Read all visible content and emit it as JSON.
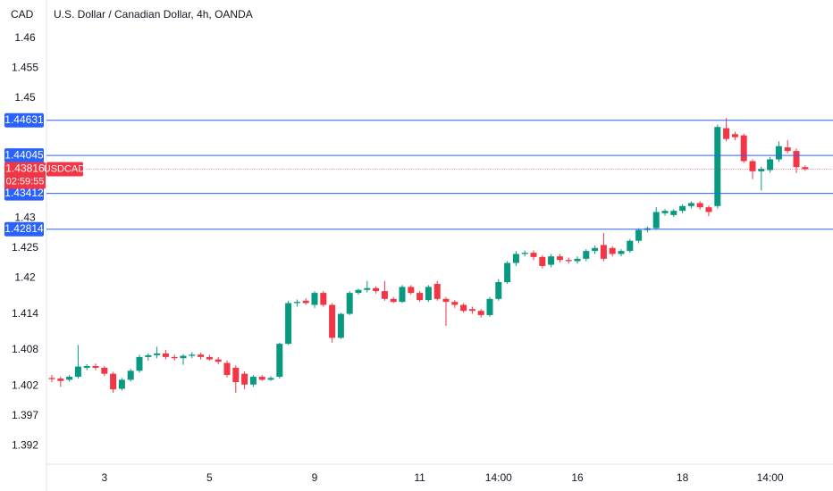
{
  "chart_data": {
    "type": "candlestick",
    "title": "U.S. Dollar / Canadian Dollar, 4h, OANDA",
    "currency": "CAD",
    "symbol": "USDCAD",
    "countdown": "02:59:55",
    "up_color": "#089981",
    "down_color": "#f23645",
    "line_color": "#2962ff",
    "ylim": [
      1.3889,
      1.4664
    ],
    "yticks": [
      1.46,
      1.455,
      1.45,
      1.43,
      1.425,
      1.42,
      1.414,
      1.408,
      1.402,
      1.397,
      1.392
    ],
    "price_lines": [
      1.44631,
      1.44045,
      1.43412,
      1.42814
    ],
    "last_price": 1.43816,
    "categories": [
      null,
      null,
      null,
      null,
      null,
      null,
      "3",
      null,
      null,
      null,
      null,
      null,
      null,
      null,
      null,
      null,
      null,
      null,
      "5",
      null,
      null,
      null,
      null,
      null,
      null,
      null,
      null,
      null,
      null,
      null,
      "9",
      null,
      null,
      null,
      null,
      null,
      null,
      null,
      null,
      null,
      null,
      null,
      "11",
      null,
      null,
      null,
      null,
      null,
      null,
      null,
      null,
      "14:00",
      null,
      null,
      null,
      null,
      null,
      null,
      null,
      null,
      "16",
      null,
      null,
      null,
      null,
      null,
      null,
      null,
      null,
      null,
      null,
      null,
      "18",
      null,
      null,
      null,
      null,
      null,
      null,
      null,
      null,
      null,
      "14:00",
      null,
      null,
      null,
      null
    ],
    "open": [
      1.4033,
      1.4032,
      1.403,
      1.4035,
      1.405,
      1.4053,
      1.405,
      1.404,
      1.4015,
      1.403,
      1.4045,
      1.4068,
      1.4071,
      1.4074,
      1.4068,
      1.4066,
      1.407,
      1.4072,
      1.4068,
      1.4064,
      1.4058,
      1.405,
      1.404,
      1.4022,
      1.4035,
      1.403,
      1.4035,
      1.409,
      1.4158,
      1.4162,
      1.4155,
      1.4175,
      1.4155,
      1.41,
      1.414,
      1.4175,
      1.418,
      1.4183,
      1.4178,
      1.4165,
      1.416,
      1.4185,
      1.4175,
      1.4163,
      1.419,
      1.4165,
      1.416,
      1.4155,
      1.4148,
      1.4145,
      1.4138,
      1.4165,
      1.4193,
      1.4225,
      1.424,
      1.4242,
      1.4235,
      1.4222,
      1.4236,
      1.423,
      1.4228,
      1.4232,
      1.4245,
      1.4255,
      1.425,
      1.424,
      1.4245,
      1.4262,
      1.428,
      1.4283,
      1.4308,
      1.4305,
      1.4312,
      1.432,
      1.4325,
      1.4318,
      1.432,
      1.445,
      1.444,
      1.4438,
      1.4395,
      1.4378,
      1.438,
      1.4398,
      1.4418,
      1.4412,
      1.4385
    ],
    "high": [
      1.4038,
      1.4035,
      1.4038,
      1.4088,
      1.4056,
      1.4057,
      1.4053,
      1.4043,
      1.4033,
      1.4048,
      1.4072,
      1.4074,
      1.4085,
      1.408,
      1.4072,
      1.4073,
      1.4076,
      1.4075,
      1.4072,
      1.4068,
      1.4062,
      1.4054,
      1.4044,
      1.4038,
      1.4038,
      1.4036,
      1.4092,
      1.4162,
      1.4164,
      1.4166,
      1.4178,
      1.4178,
      1.4158,
      1.4142,
      1.4178,
      1.4182,
      1.4195,
      1.4186,
      1.4195,
      1.4168,
      1.4188,
      1.4188,
      1.4178,
      1.4188,
      1.4195,
      1.4168,
      1.4163,
      1.4158,
      1.4152,
      1.4148,
      1.4168,
      1.4198,
      1.4228,
      1.4245,
      1.4246,
      1.4246,
      1.4238,
      1.424,
      1.424,
      1.4234,
      1.4236,
      1.4248,
      1.4254,
      1.4275,
      1.4253,
      1.4248,
      1.4265,
      1.4283,
      1.4286,
      1.4318,
      1.4315,
      1.4315,
      1.4323,
      1.4328,
      1.4328,
      1.4321,
      1.4456,
      1.4467,
      1.4444,
      1.4441,
      1.4398,
      1.4386,
      1.4402,
      1.4428,
      1.443,
      1.4416,
      1.4388
    ],
    "low": [
      1.4026,
      1.4018,
      1.4027,
      1.4032,
      1.4046,
      1.4046,
      1.4036,
      1.4008,
      1.4012,
      1.4027,
      1.4042,
      1.4062,
      1.4066,
      1.4064,
      1.4062,
      1.4055,
      1.4066,
      1.4064,
      1.4062,
      1.4056,
      1.4034,
      1.4008,
      1.4014,
      1.4018,
      1.4028,
      1.4028,
      1.4032,
      1.4088,
      1.4152,
      1.4155,
      1.415,
      1.4152,
      1.4092,
      1.4098,
      1.4138,
      1.4172,
      1.4176,
      1.4174,
      1.4162,
      1.4158,
      1.4158,
      1.4172,
      1.416,
      1.416,
      1.4162,
      1.412,
      1.415,
      1.4142,
      1.414,
      1.4134,
      1.4135,
      1.4162,
      1.419,
      1.422,
      1.4236,
      1.423,
      1.4216,
      1.4218,
      1.4226,
      1.4224,
      1.4224,
      1.4228,
      1.424,
      1.4228,
      1.4236,
      1.4236,
      1.4242,
      1.4258,
      1.4276,
      1.428,
      1.4304,
      1.4302,
      1.4308,
      1.4316,
      1.4314,
      1.4303,
      1.4316,
      1.4428,
      1.443,
      1.4392,
      1.4365,
      1.4346,
      1.4376,
      1.4394,
      1.4408,
      1.4375,
      1.4379
    ],
    "close": [
      1.4031,
      1.4028,
      1.4035,
      1.4052,
      1.4053,
      1.405,
      1.404,
      1.4014,
      1.403,
      1.4045,
      1.4068,
      1.4071,
      1.4074,
      1.4068,
      1.4066,
      1.407,
      1.4072,
      1.4068,
      1.4064,
      1.406,
      1.4038,
      1.4026,
      1.4022,
      1.4035,
      1.403,
      1.4033,
      1.409,
      1.4158,
      1.416,
      1.4158,
      1.4175,
      1.4155,
      1.41,
      1.414,
      1.4175,
      1.418,
      1.4183,
      1.4178,
      1.4165,
      1.416,
      1.4185,
      1.4175,
      1.4163,
      1.4185,
      1.4165,
      1.416,
      1.4155,
      1.4145,
      1.4145,
      1.4138,
      1.4165,
      1.4193,
      1.4225,
      1.424,
      1.4242,
      1.4235,
      1.422,
      1.4236,
      1.423,
      1.4228,
      1.4232,
      1.4245,
      1.425,
      1.4232,
      1.424,
      1.4245,
      1.4262,
      1.428,
      1.4283,
      1.431,
      1.4312,
      1.4312,
      1.432,
      1.4325,
      1.4318,
      1.431,
      1.4452,
      1.4432,
      1.4435,
      1.4395,
      1.4378,
      1.4382,
      1.4398,
      1.442,
      1.4412,
      1.4385,
      1.43816
    ]
  }
}
